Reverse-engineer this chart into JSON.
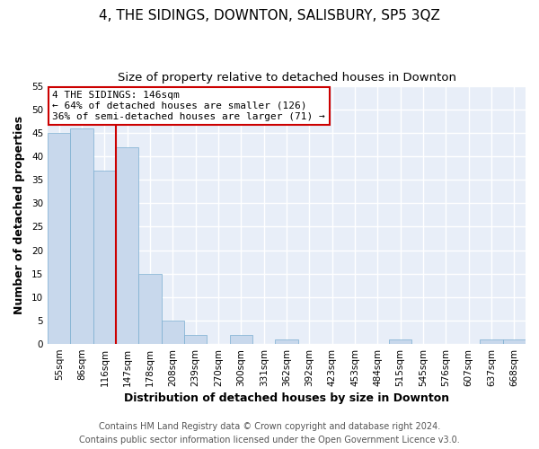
{
  "title": "4, THE SIDINGS, DOWNTON, SALISBURY, SP5 3QZ",
  "subtitle": "Size of property relative to detached houses in Downton",
  "xlabel": "Distribution of detached houses by size in Downton",
  "ylabel": "Number of detached properties",
  "bin_labels": [
    "55sqm",
    "86sqm",
    "116sqm",
    "147sqm",
    "178sqm",
    "208sqm",
    "239sqm",
    "270sqm",
    "300sqm",
    "331sqm",
    "362sqm",
    "392sqm",
    "423sqm",
    "453sqm",
    "484sqm",
    "515sqm",
    "545sqm",
    "576sqm",
    "607sqm",
    "637sqm",
    "668sqm"
  ],
  "bar_heights": [
    45,
    46,
    37,
    42,
    15,
    5,
    2,
    0,
    2,
    0,
    1,
    0,
    0,
    0,
    0,
    1,
    0,
    0,
    0,
    1,
    1
  ],
  "bar_color": "#c8d8ec",
  "bar_edge_color": "#7aaed0",
  "vline_x_idx": 3,
  "vline_color": "#cc0000",
  "annotation_title": "4 THE SIDINGS: 146sqm",
  "annotation_line1": "← 64% of detached houses are smaller (126)",
  "annotation_line2": "36% of semi-detached houses are larger (71) →",
  "annotation_box_facecolor": "#ffffff",
  "annotation_box_edgecolor": "#cc0000",
  "ylim": [
    0,
    55
  ],
  "yticks": [
    0,
    5,
    10,
    15,
    20,
    25,
    30,
    35,
    40,
    45,
    50,
    55
  ],
  "footer_line1": "Contains HM Land Registry data © Crown copyright and database right 2024.",
  "footer_line2": "Contains public sector information licensed under the Open Government Licence v3.0.",
  "plot_bg_color": "#e8eef8",
  "fig_bg_color": "#ffffff",
  "grid_color": "#ffffff",
  "title_fontsize": 11,
  "subtitle_fontsize": 9.5,
  "axis_label_fontsize": 9,
  "tick_fontsize": 7.5,
  "annotation_fontsize": 8,
  "footer_fontsize": 7
}
